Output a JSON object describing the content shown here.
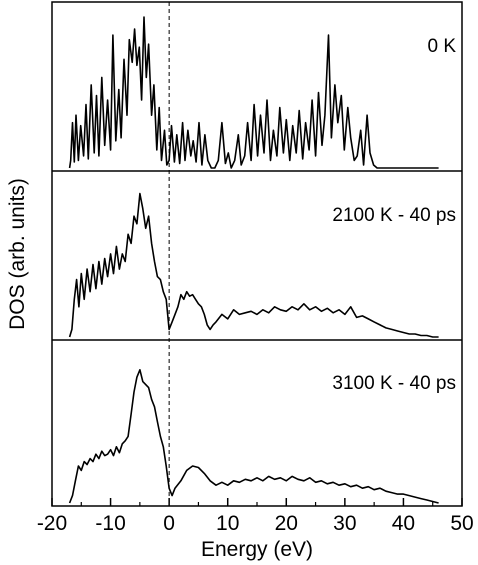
{
  "chart_data": {
    "type": "line",
    "xlabel": "Energy (eV)",
    "ylabel": "DOS (arb. units)",
    "xlim": [
      -20,
      50
    ],
    "x_ticks": [
      -20,
      -10,
      0,
      10,
      20,
      30,
      40,
      50
    ],
    "x_tick_labels": [
      "-20",
      "-10",
      "0",
      "10",
      "20",
      "30",
      "40",
      "50"
    ],
    "vline_x": 0,
    "vline_style": "dashed",
    "grid": false,
    "legend": "none",
    "line_color": "#000000",
    "panels": [
      {
        "label": "0 K",
        "ylim": [
          0,
          1
        ],
        "x": [
          -17,
          -16.8,
          -16.5,
          -16.2,
          -15.9,
          -15.5,
          -15.1,
          -14.6,
          -14.2,
          -13.8,
          -13.3,
          -12.8,
          -12.4,
          -12.0,
          -11.5,
          -11.0,
          -10.5,
          -10.0,
          -9.6,
          -9.1,
          -8.6,
          -8.2,
          -7.7,
          -7.2,
          -6.8,
          -6.3,
          -5.9,
          -5.5,
          -5.1,
          -4.7,
          -4.3,
          -3.9,
          -3.5,
          -3.0,
          -2.6,
          -2.1,
          -1.7,
          -1.3,
          -0.8,
          -0.4,
          0.0,
          0.4,
          0.9,
          1.3,
          1.8,
          2.3,
          2.7,
          3.2,
          3.7,
          4.1,
          4.6,
          5.1,
          5.6,
          6.1,
          6.6,
          7.2,
          7.8,
          8.4,
          9.0,
          9.6,
          10.1,
          10.6,
          11.2,
          11.8,
          12.3,
          12.9,
          13.4,
          14.0,
          14.5,
          15.1,
          15.6,
          16.2,
          16.7,
          17.3,
          17.8,
          18.4,
          18.9,
          19.5,
          20.0,
          20.6,
          21.1,
          21.7,
          22.2,
          22.8,
          23.3,
          23.9,
          24.4,
          25.0,
          25.5,
          26.1,
          26.6,
          27.2,
          27.7,
          28.3,
          28.8,
          29.4,
          29.9,
          30.5,
          31.0,
          31.6,
          32.1,
          32.7,
          33.2,
          33.8,
          34.3,
          34.9,
          35.5,
          36.5,
          46
        ],
        "values": [
          0.0,
          0.05,
          0.3,
          0.04,
          0.35,
          0.05,
          0.28,
          0.08,
          0.42,
          0.06,
          0.55,
          0.1,
          0.48,
          0.08,
          0.6,
          0.15,
          0.45,
          0.12,
          0.88,
          0.18,
          0.52,
          0.2,
          0.72,
          0.35,
          0.85,
          0.7,
          0.92,
          0.68,
          0.8,
          0.45,
          1.0,
          0.6,
          0.82,
          0.35,
          0.55,
          0.12,
          0.4,
          0.05,
          0.25,
          0.02,
          0.05,
          0.28,
          0.04,
          0.22,
          0.03,
          0.3,
          0.05,
          0.25,
          0.08,
          0.18,
          0.04,
          0.3,
          0.02,
          0.22,
          0.05,
          0.0,
          0.0,
          0.05,
          0.3,
          0.03,
          0.1,
          0.0,
          0.05,
          0.22,
          0.02,
          0.08,
          0.3,
          0.05,
          0.42,
          0.08,
          0.35,
          0.1,
          0.45,
          0.05,
          0.25,
          0.08,
          0.4,
          0.1,
          0.32,
          0.05,
          0.28,
          0.1,
          0.38,
          0.06,
          0.3,
          0.12,
          0.45,
          0.08,
          0.5,
          0.15,
          0.35,
          0.88,
          0.2,
          0.55,
          0.3,
          0.48,
          0.12,
          0.4,
          0.2,
          0.05,
          0.08,
          0.25,
          0.02,
          0.35,
          0.1,
          0.02,
          0.0,
          0.0,
          0.0
        ]
      },
      {
        "label": "2100 K - 40 ps",
        "ylim": [
          0,
          1
        ],
        "x": [
          -17,
          -16.6,
          -16.2,
          -15.8,
          -15.4,
          -15.0,
          -14.5,
          -14.0,
          -13.5,
          -13.0,
          -12.5,
          -12.0,
          -11.5,
          -11.0,
          -10.5,
          -10.0,
          -9.5,
          -9.0,
          -8.5,
          -8.0,
          -7.5,
          -7.0,
          -6.5,
          -6.0,
          -5.5,
          -5.0,
          -4.5,
          -4.0,
          -3.5,
          -3.0,
          -2.5,
          -2.0,
          -1.5,
          -1.0,
          -0.5,
          0.0,
          0.5,
          1.0,
          1.5,
          2.0,
          2.5,
          3.0,
          3.5,
          4.0,
          4.5,
          5.0,
          5.5,
          6.0,
          6.5,
          7.0,
          7.5,
          8.0,
          9.0,
          10.0,
          11.0,
          12.0,
          13.0,
          14.0,
          15.0,
          16.0,
          17.0,
          18.0,
          19.0,
          20.0,
          21.0,
          22.0,
          23.0,
          24.0,
          25.0,
          26.0,
          27.0,
          28.0,
          29.0,
          30.0,
          31.0,
          32.0,
          33.0,
          34.0,
          35.0,
          36.0,
          37.0,
          38.0,
          39.0,
          40.0,
          41.0,
          42.0,
          43.0,
          44.0,
          45.0,
          46.0
        ],
        "values": [
          0.0,
          0.05,
          0.25,
          0.38,
          0.2,
          0.42,
          0.25,
          0.45,
          0.3,
          0.48,
          0.32,
          0.5,
          0.35,
          0.52,
          0.4,
          0.55,
          0.42,
          0.6,
          0.45,
          0.55,
          0.5,
          0.68,
          0.62,
          0.8,
          0.75,
          0.95,
          0.85,
          0.72,
          0.8,
          0.62,
          0.5,
          0.4,
          0.38,
          0.3,
          0.25,
          0.05,
          0.1,
          0.15,
          0.2,
          0.28,
          0.25,
          0.3,
          0.27,
          0.28,
          0.25,
          0.22,
          0.2,
          0.15,
          0.08,
          0.05,
          0.08,
          0.1,
          0.15,
          0.12,
          0.18,
          0.15,
          0.16,
          0.17,
          0.15,
          0.18,
          0.16,
          0.2,
          0.18,
          0.17,
          0.2,
          0.18,
          0.22,
          0.18,
          0.2,
          0.17,
          0.19,
          0.16,
          0.18,
          0.15,
          0.2,
          0.13,
          0.14,
          0.12,
          0.1,
          0.08,
          0.06,
          0.05,
          0.04,
          0.03,
          0.02,
          0.02,
          0.01,
          0.01,
          0.0,
          0.0
        ]
      },
      {
        "label": "3100 K - 40 ps",
        "ylim": [
          0,
          1
        ],
        "x": [
          -17,
          -16.5,
          -16.0,
          -15.5,
          -15.0,
          -14.5,
          -14.0,
          -13.5,
          -13.0,
          -12.5,
          -12.0,
          -11.5,
          -11.0,
          -10.5,
          -10.0,
          -9.5,
          -9.0,
          -8.5,
          -8.0,
          -7.5,
          -7.0,
          -6.5,
          -6.0,
          -5.5,
          -5.0,
          -4.5,
          -4.0,
          -3.5,
          -3.0,
          -2.5,
          -2.0,
          -1.5,
          -1.0,
          -0.5,
          0.0,
          0.5,
          1.0,
          2.0,
          3.0,
          4.0,
          5.0,
          6.0,
          7.0,
          8.0,
          9.0,
          10.0,
          11.0,
          12.0,
          13.0,
          14.0,
          15.0,
          16.0,
          17.0,
          18.0,
          19.0,
          20.0,
          21.0,
          22.0,
          23.0,
          24.0,
          25.0,
          26.0,
          27.0,
          28.0,
          29.0,
          30.0,
          31.0,
          32.0,
          33.0,
          34.0,
          35.0,
          36.0,
          37.0,
          38.0,
          39.0,
          40.0,
          41.0,
          42.0,
          43.0,
          44.0,
          45.0,
          46.0
        ],
        "values": [
          0.0,
          0.05,
          0.15,
          0.25,
          0.22,
          0.28,
          0.26,
          0.3,
          0.28,
          0.33,
          0.3,
          0.35,
          0.32,
          0.33,
          0.36,
          0.32,
          0.38,
          0.34,
          0.4,
          0.42,
          0.45,
          0.6,
          0.75,
          0.85,
          0.9,
          0.82,
          0.8,
          0.78,
          0.7,
          0.65,
          0.55,
          0.45,
          0.38,
          0.25,
          0.1,
          0.05,
          0.1,
          0.15,
          0.22,
          0.25,
          0.24,
          0.2,
          0.15,
          0.12,
          0.14,
          0.12,
          0.15,
          0.14,
          0.16,
          0.15,
          0.17,
          0.15,
          0.18,
          0.16,
          0.17,
          0.15,
          0.18,
          0.16,
          0.15,
          0.17,
          0.14,
          0.15,
          0.13,
          0.14,
          0.12,
          0.13,
          0.11,
          0.12,
          0.1,
          0.11,
          0.09,
          0.1,
          0.08,
          0.07,
          0.06,
          0.06,
          0.05,
          0.04,
          0.03,
          0.02,
          0.01,
          0.0
        ]
      }
    ]
  }
}
